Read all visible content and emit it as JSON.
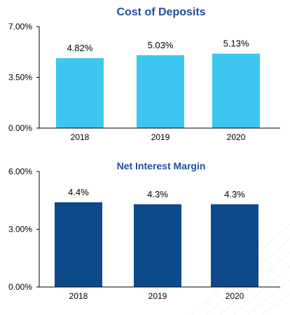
{
  "chart_data": [
    {
      "type": "bar",
      "title": "Cost of Deposits",
      "categories": [
        "2018",
        "2019",
        "2020"
      ],
      "values": [
        4.82,
        5.03,
        5.13
      ],
      "data_labels": [
        "4.82%",
        "5.03%",
        "5.13%"
      ],
      "ylim": [
        0,
        7.0
      ],
      "yticks": [
        0,
        3.5,
        7.0
      ],
      "ytick_labels": [
        "0.00%",
        "3.50%",
        "7.00%"
      ],
      "bar_color": "#3cc6f0",
      "grid": false
    },
    {
      "type": "bar",
      "title": "Net Interest Margin",
      "categories": [
        "2018",
        "2019",
        "2020"
      ],
      "values": [
        4.4,
        4.3,
        4.3
      ],
      "data_labels": [
        "4.4%",
        "4.3%",
        "4.3%"
      ],
      "ylim": [
        0,
        6.0
      ],
      "yticks": [
        0,
        3.0,
        6.0
      ],
      "ytick_labels": [
        "0.00%",
        "3.00%",
        "6.00%"
      ],
      "bar_color": "#0d4a8c",
      "grid": false
    }
  ],
  "colors": {
    "title": "#1f4e9a",
    "axis": "#000000",
    "text": "#000000"
  }
}
